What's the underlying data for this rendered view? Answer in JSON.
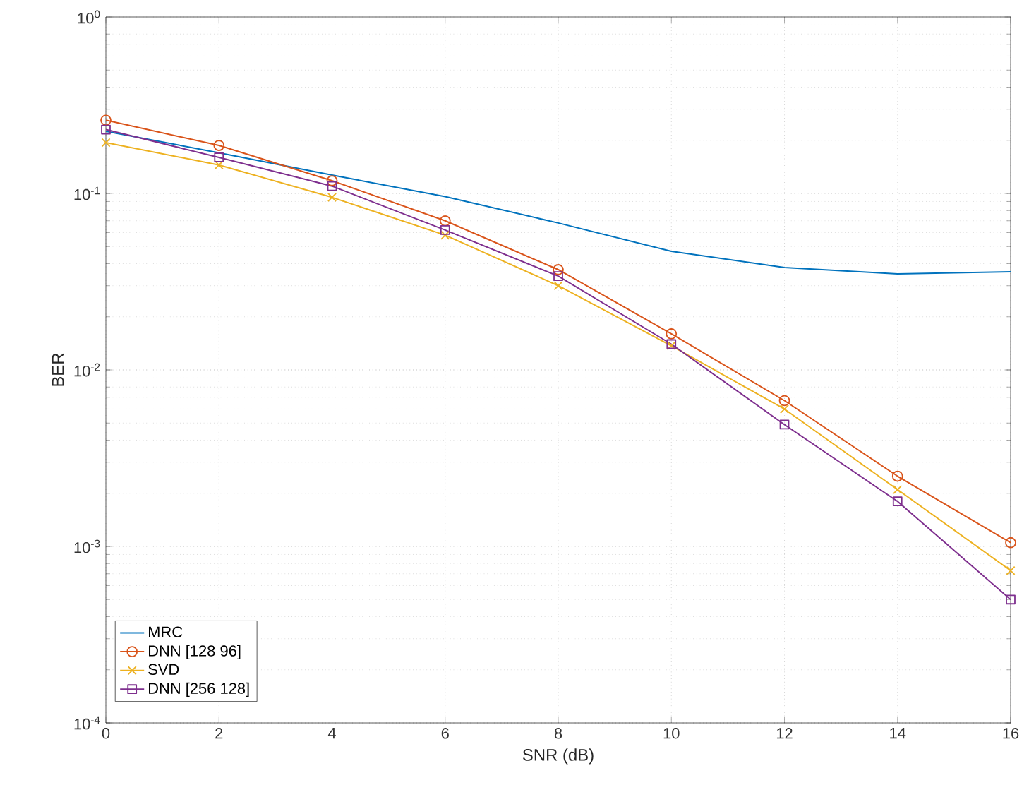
{
  "chart_data": {
    "type": "line",
    "xlabel": "SNR (dB)",
    "ylabel": "BER",
    "log": "y",
    "grid": true,
    "legend": "bottom left",
    "x": [
      0,
      2,
      4,
      6,
      8,
      10,
      12,
      14,
      16
    ],
    "xlim": [
      0,
      16
    ],
    "xticks": [
      0,
      2,
      4,
      6,
      8,
      10,
      12,
      14,
      16
    ],
    "ylim": [
      0.0001,
      1
    ],
    "yticks": [
      {
        "value": 0.0001,
        "label": "10$^{-4}$"
      },
      {
        "value": 0.001,
        "label": "10$^{-3}$"
      },
      {
        "value": 0.01,
        "label": "10$^{-2}$"
      },
      {
        "value": 0.1,
        "label": "10$^{-1}$"
      },
      {
        "value": 1,
        "label": "10$^{0}$"
      }
    ],
    "series": [
      {
        "name": "MRC",
        "color": "#0072bd",
        "marker": "none",
        "values": [
          0.225,
          0.17,
          0.127,
          0.096,
          0.068,
          0.047,
          0.038,
          0.035,
          0.036
        ]
      },
      {
        "name": "DNN [128 96]",
        "color": "#d95319",
        "marker": "circle",
        "values": [
          0.26,
          0.187,
          0.118,
          0.07,
          0.037,
          0.016,
          0.0067,
          0.0025,
          0.00105
        ]
      },
      {
        "name": "SVD",
        "color": "#edb120",
        "marker": "cross",
        "values": [
          0.194,
          0.145,
          0.095,
          0.058,
          0.03,
          0.0137,
          0.006,
          0.0021,
          0.00073
        ]
      },
      {
        "name": "DNN [256 128]",
        "color": "#7e2f8e",
        "marker": "square",
        "values": [
          0.23,
          0.16,
          0.11,
          0.062,
          0.034,
          0.014,
          0.0049,
          0.0018,
          0.0005
        ]
      }
    ]
  }
}
